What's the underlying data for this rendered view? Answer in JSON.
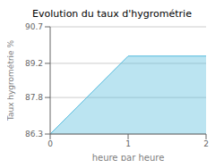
{
  "chart_data": {
    "type": "area",
    "title": "Evolution du taux d'hygrométrie",
    "xlabel": "heure par heure",
    "ylabel": "Taux hygrométrie %",
    "x": [
      0.0,
      1.0,
      2.0
    ],
    "values": [
      86.3,
      89.5,
      89.5
    ],
    "color": "#55bbdd",
    "xlim": [
      0,
      2
    ],
    "ylim": [
      86.3,
      90.7
    ],
    "xticks": [
      0,
      1,
      2
    ],
    "yticks": [
      86.3,
      87.8,
      89.2,
      90.7
    ],
    "grid": "y"
  }
}
